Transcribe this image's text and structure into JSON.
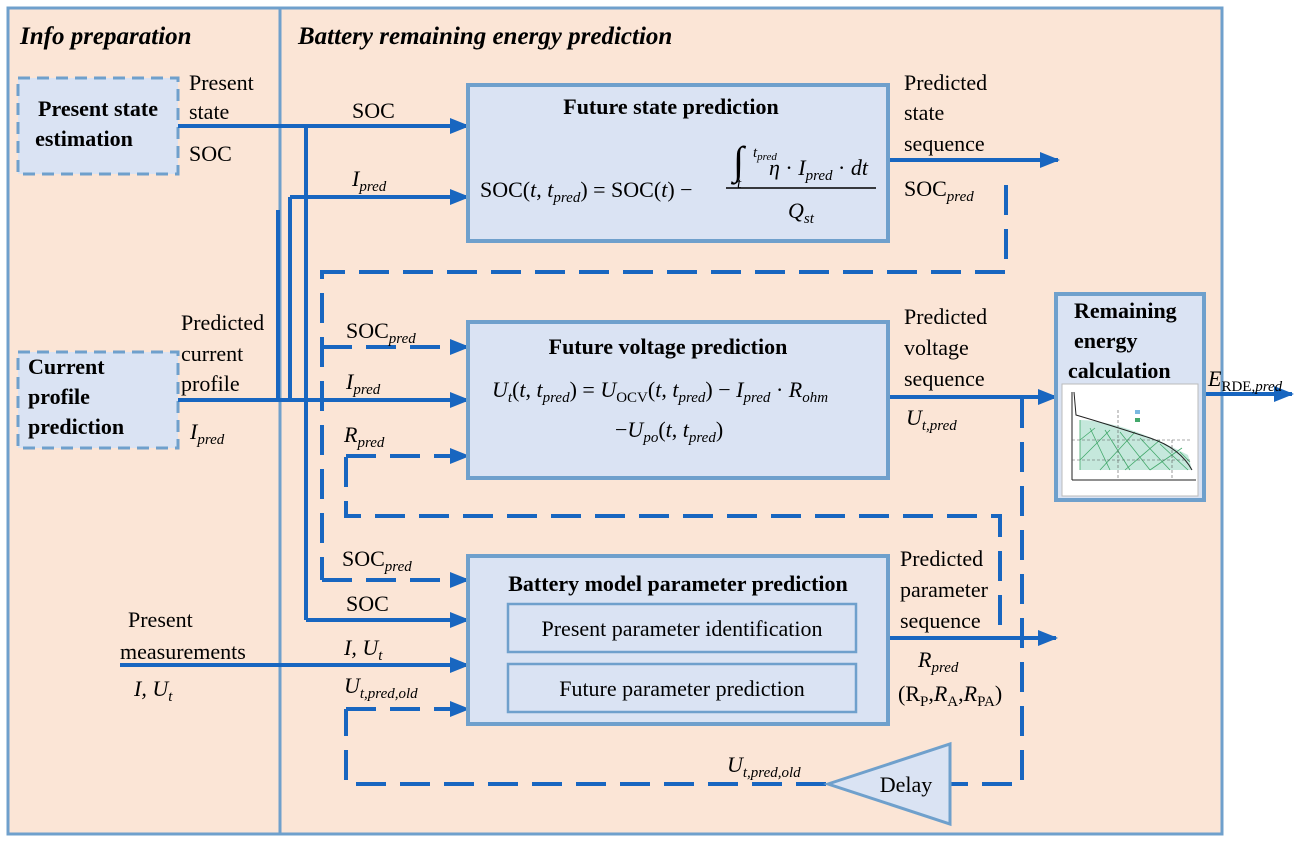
{
  "sections": {
    "info": "Info preparation",
    "battery": "Battery remaining energy prediction"
  },
  "inputs": {
    "present_state": {
      "title_line1": "Present state",
      "title_line2": "estimation",
      "out_line1": "Present",
      "out_line2": "state",
      "out_line3": "SOC"
    },
    "current_profile": {
      "title_line1": "Current",
      "title_line2": "profile",
      "title_line3": "prediction",
      "out_line1": "Predicted",
      "out_line2": "current",
      "out_line3": "profile"
    },
    "measurements": {
      "line1": "Present",
      "line2": "measurements",
      "value": "I, U"
    }
  },
  "blocks": {
    "future_state": {
      "title": "Future state prediction",
      "equation": "SOC(t, tpred) = SOC(t) − ∫ η·Ipred·dt / Qst"
    },
    "future_voltage": {
      "title": "Future voltage prediction",
      "equation": "Ut(t, tpred) = UOCV(t, tpred) − Ipred·Rohm − Upo(t, tpred)"
    },
    "parameter": {
      "title": "Battery model parameter prediction",
      "sub1": "Present parameter identification",
      "sub2": "Future parameter prediction"
    },
    "remaining": {
      "title_line1": "Remaining",
      "title_line2": "energy",
      "title_line3": "calculation"
    },
    "delay": "Delay"
  },
  "labels": {
    "soc": "SOC",
    "i_ut": "I, U",
    "predicted": "Predicted",
    "state": "state",
    "voltage": "voltage",
    "parameter": "parameter",
    "sequence": "sequence",
    "r_tuple_open": "(R",
    "r_tuple_p": "P",
    "r_tuple_a": "A",
    "r_tuple_pa": "PA"
  },
  "colors": {
    "background": "#fbe5d6",
    "box_fill": "#dae3f3",
    "border": "#6fa0cc",
    "line": "#1866c0"
  }
}
